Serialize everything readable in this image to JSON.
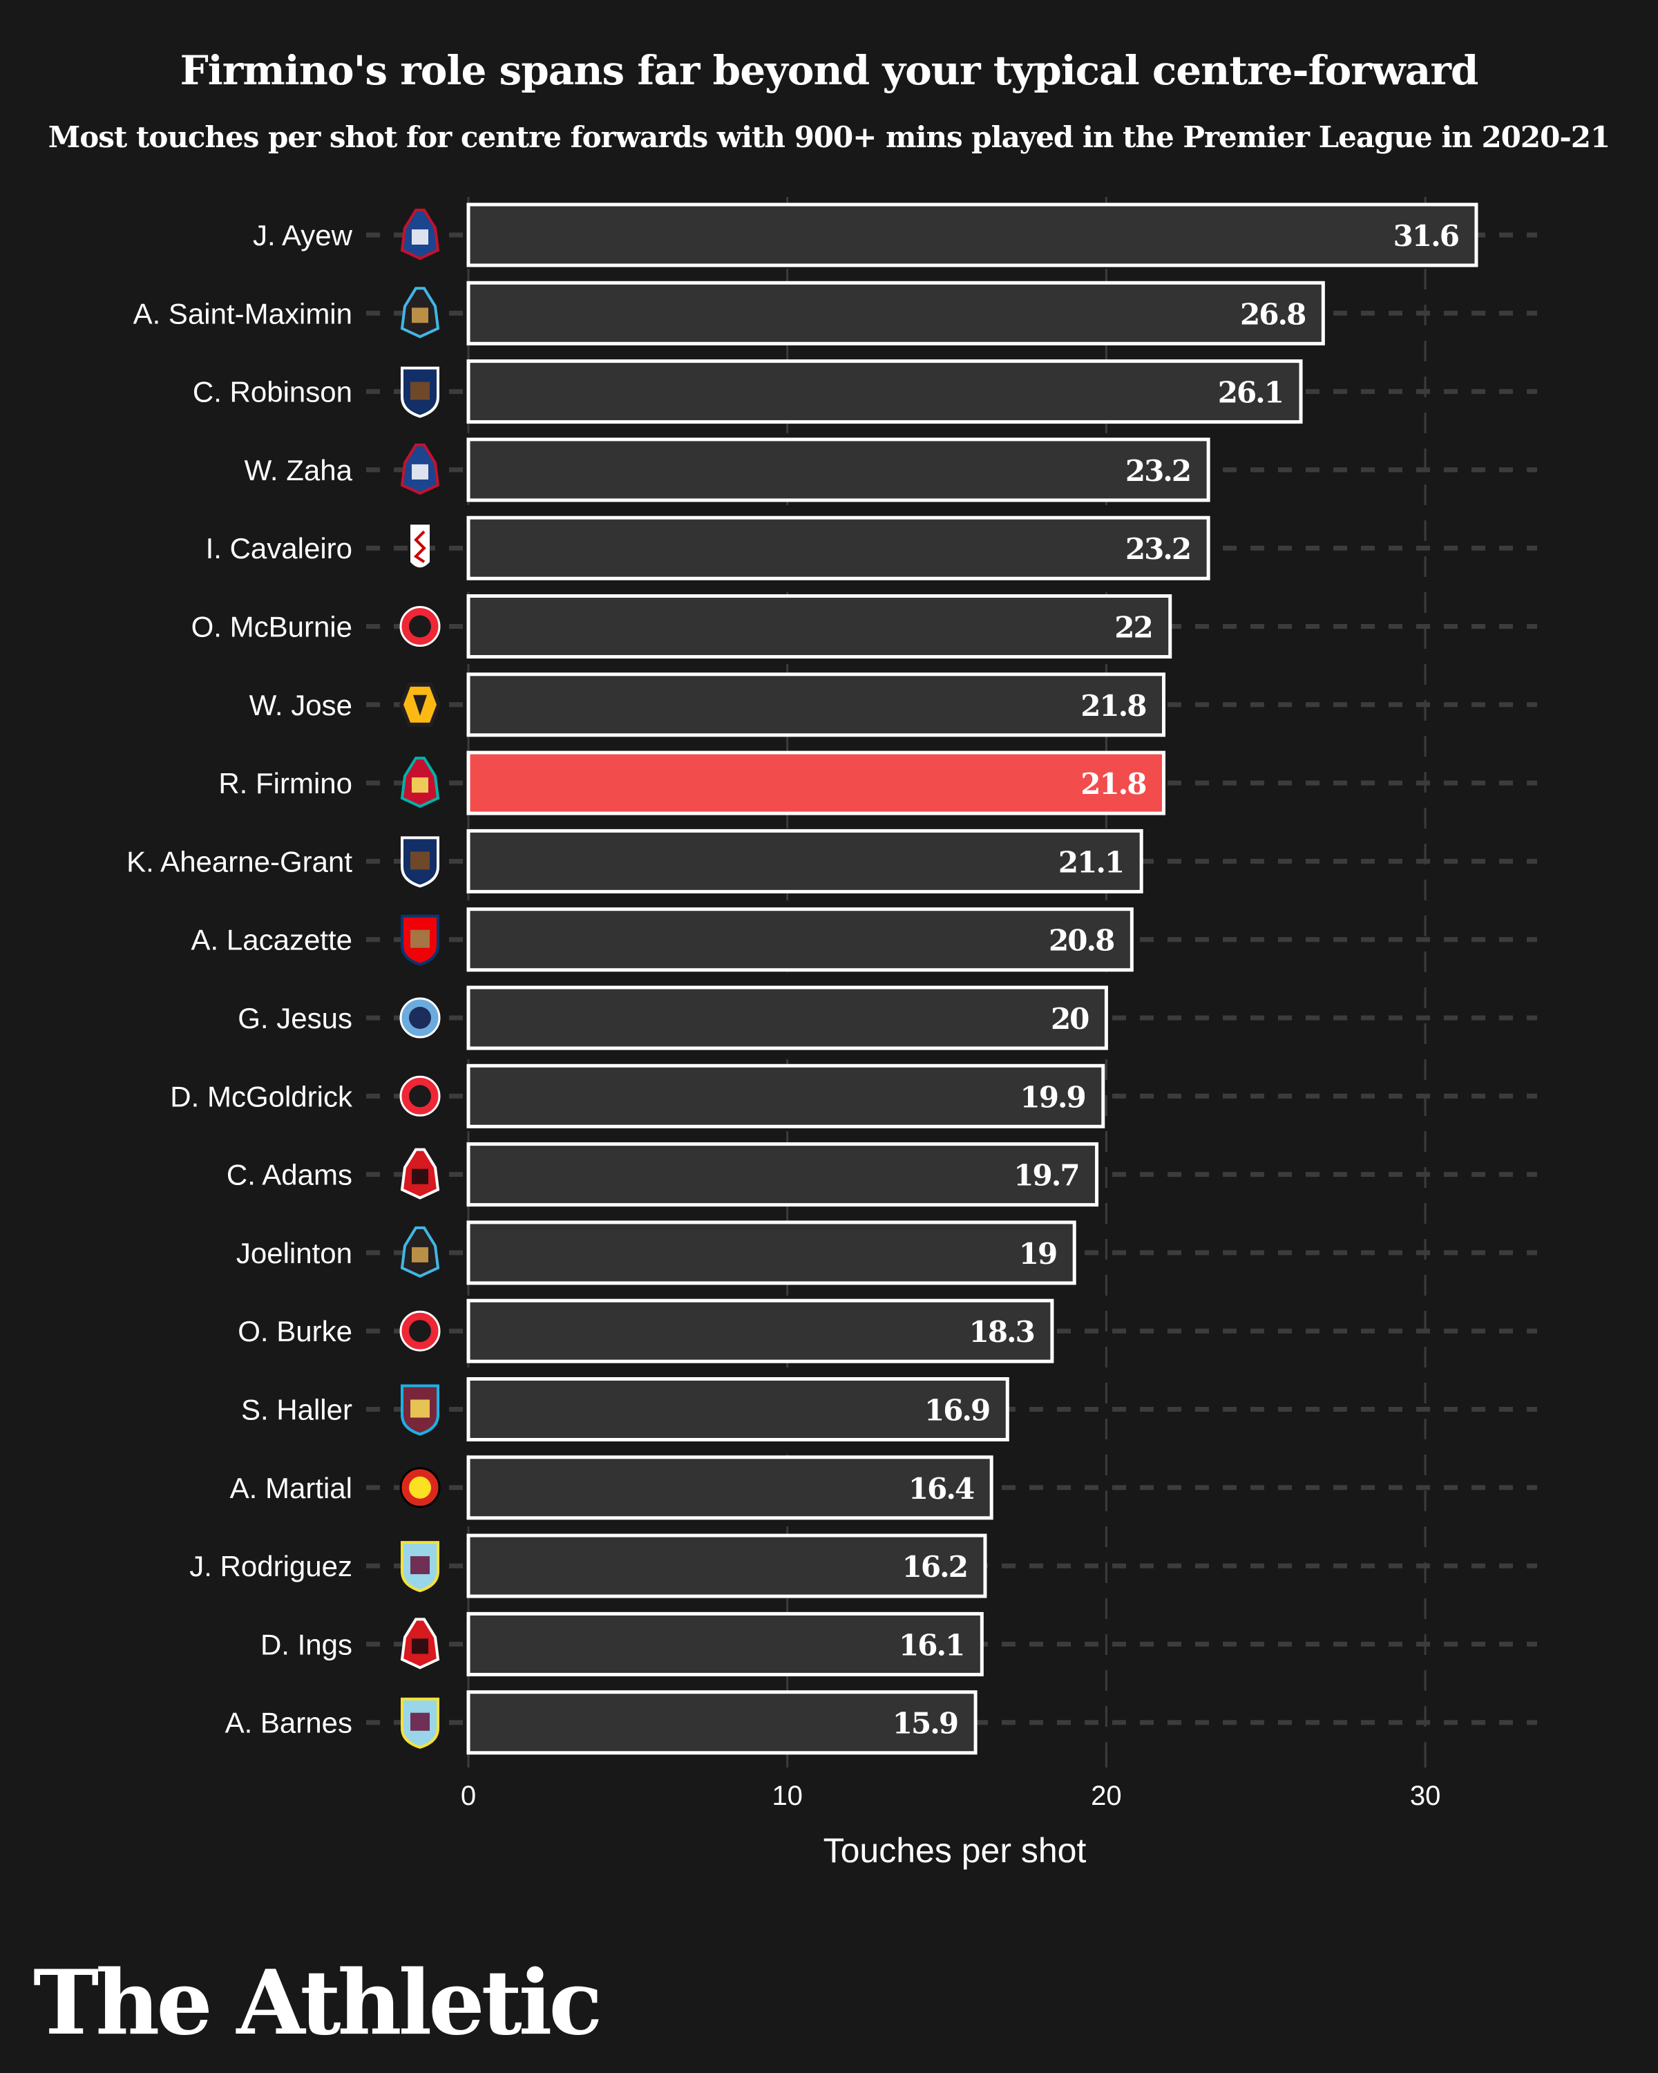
{
  "chart_data": {
    "type": "bar",
    "orientation": "horizontal",
    "title": "Firmino's role spans far beyond your typical centre-forward",
    "subtitle": "Most touches per shot for centre forwards with 900+ mins played in the Premier League in 2020-21",
    "xlabel": "Touches per shot",
    "ylabel": "",
    "xlim": [
      0,
      33
    ],
    "xticks": [
      0,
      10,
      20,
      30
    ],
    "grid": true,
    "legend": "none",
    "highlight_player": "R. Firmino",
    "colors": {
      "background": "#181818",
      "bar_fill": "#333333",
      "bar_stroke": "#ffffff",
      "highlight_fill": "#f24c4c",
      "grid": "#3c3c3c",
      "text": "#ffffff"
    },
    "categories": [
      "J. Ayew",
      "A. Saint-Maximin",
      "C. Robinson",
      "W. Zaha",
      "I. Cavaleiro",
      "O. McBurnie",
      "W. Jose",
      "R. Firmino",
      "K. Ahearne-Grant",
      "A. Lacazette",
      "G. Jesus",
      "D. McGoldrick",
      "C. Adams",
      "Joelinton",
      "O. Burke",
      "S. Haller",
      "A. Martial",
      "J. Rodriguez",
      "D. Ings",
      "A. Barnes"
    ],
    "clubs": [
      "crystal-palace",
      "newcastle",
      "west-brom",
      "crystal-palace",
      "fulham",
      "sheffield-united",
      "wolves",
      "liverpool",
      "west-brom",
      "arsenal",
      "man-city",
      "sheffield-united",
      "southampton",
      "newcastle",
      "sheffield-united",
      "west-ham",
      "man-united",
      "burnley",
      "southampton",
      "burnley"
    ],
    "values": [
      31.6,
      26.8,
      26.1,
      23.2,
      23.2,
      22,
      21.8,
      21.8,
      21.1,
      20.8,
      20,
      19.9,
      19.7,
      19,
      18.3,
      16.9,
      16.4,
      16.2,
      16.1,
      15.9
    ],
    "value_labels": [
      "31.6",
      "26.8",
      "26.1",
      "23.2",
      "23.2",
      "22",
      "21.8",
      "21.8",
      "21.1",
      "20.8",
      "20",
      "19.9",
      "19.7",
      "19",
      "18.3",
      "16.9",
      "16.4",
      "16.2",
      "16.1",
      "15.9"
    ]
  },
  "club_badges": {
    "crystal-palace": {
      "primary": "#1b458f",
      "secondary": "#c4122e",
      "tertiary": "#ffffff"
    },
    "newcastle": {
      "primary": "#241f20",
      "secondary": "#41b6e6",
      "tertiary": "#d4a44c"
    },
    "west-brom": {
      "primary": "#122f67",
      "secondary": "#ffffff",
      "tertiary": "#7a4a22"
    },
    "fulham": {
      "primary": "#ffffff",
      "secondary": "#cc0000",
      "tertiary": "#ffffff"
    },
    "sheffield-united": {
      "primary": "#ee2737",
      "secondary": "#1a1a1a",
      "tertiary": "#ffffff"
    },
    "wolves": {
      "primary": "#fdb913",
      "secondary": "#231f20",
      "tertiary": "#fdb913"
    },
    "liverpool": {
      "primary": "#c8102e",
      "secondary": "#00b2a9",
      "tertiary": "#f6eb61"
    },
    "arsenal": {
      "primary": "#ef0107",
      "secondary": "#063672",
      "tertiary": "#9c824a"
    },
    "man-city": {
      "primary": "#6cabdd",
      "secondary": "#1c2c5b",
      "tertiary": "#ffffff"
    },
    "southampton": {
      "primary": "#d71920",
      "secondary": "#ffffff",
      "tertiary": "#130c0e"
    },
    "west-ham": {
      "primary": "#7a263a",
      "secondary": "#1bb1e7",
      "tertiary": "#f3d459"
    },
    "man-united": {
      "primary": "#da291c",
      "secondary": "#fbe122",
      "tertiary": "#000000"
    },
    "burnley": {
      "primary": "#99d6ea",
      "secondary": "#f4e23b",
      "tertiary": "#6c1d45"
    }
  },
  "footer": {
    "brand": "The Athletic"
  }
}
